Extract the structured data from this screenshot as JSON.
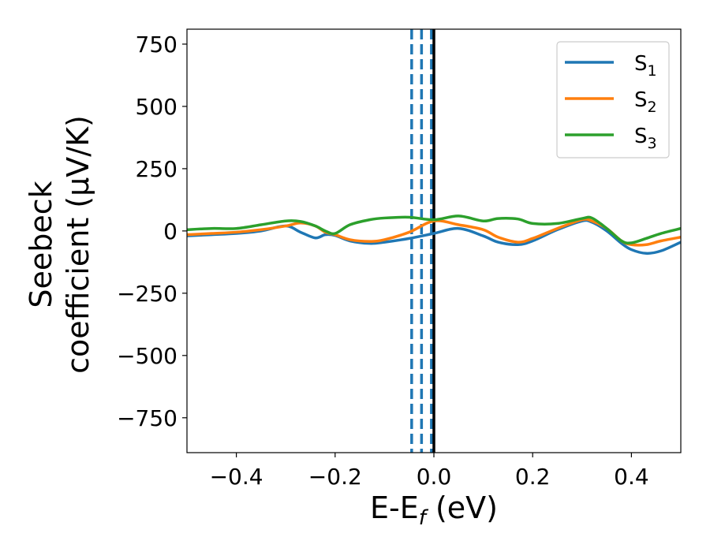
{
  "chart_data": {
    "type": "line",
    "xlabel": "E-E",
    "xlabel_sub": "f",
    "xlabel_unit": " (eV)",
    "ylabel_line1": "Seebeck",
    "ylabel_line2": "coefficient  (μV/K)",
    "xlim": [
      -0.5,
      0.5
    ],
    "ylim": [
      -890,
      810
    ],
    "xticks": [
      -0.4,
      -0.2,
      0.0,
      0.2,
      0.4
    ],
    "xtick_labels": [
      "−0.4",
      "−0.2",
      "0.0",
      "0.2",
      "0.4"
    ],
    "yticks": [
      750,
      500,
      250,
      0,
      -250,
      -500,
      -750
    ],
    "ytick_labels": [
      "750",
      "500",
      "250",
      "0",
      "−250",
      "−500",
      "−750"
    ],
    "grid": false,
    "legend_position": "top-right",
    "vlines": [
      {
        "x": -0.045,
        "style": "dashed",
        "color": "#1f77b4"
      },
      {
        "x": -0.025,
        "style": "dashed",
        "color": "#1f77b4"
      },
      {
        "x": -0.005,
        "style": "dashed",
        "color": "#1f77b4"
      },
      {
        "x": 0.0,
        "style": "solid",
        "color": "#000000"
      }
    ],
    "series": [
      {
        "name": "S",
        "name_sub": "1",
        "color": "#1f77b4",
        "x": [
          -0.5,
          -0.45,
          -0.4,
          -0.35,
          -0.3,
          -0.27,
          -0.24,
          -0.22,
          -0.2,
          -0.17,
          -0.13,
          -0.1,
          -0.05,
          0.0,
          0.05,
          0.1,
          0.13,
          0.17,
          0.2,
          0.25,
          0.3,
          0.32,
          0.35,
          0.38,
          0.4,
          0.43,
          0.46,
          0.5
        ],
        "y": [
          -20,
          -15,
          -10,
          0,
          20,
          -5,
          -28,
          -15,
          -18,
          -40,
          -50,
          -45,
          -30,
          -10,
          10,
          -20,
          -45,
          -55,
          -40,
          5,
          40,
          35,
          0,
          -50,
          -75,
          -90,
          -80,
          -45
        ]
      },
      {
        "name": "S",
        "name_sub": "2",
        "color": "#ff7f0e",
        "x": [
          -0.5,
          -0.45,
          -0.4,
          -0.35,
          -0.3,
          -0.27,
          -0.24,
          -0.22,
          -0.2,
          -0.17,
          -0.13,
          -0.1,
          -0.05,
          0.0,
          0.05,
          0.1,
          0.13,
          0.17,
          0.2,
          0.25,
          0.3,
          0.32,
          0.35,
          0.38,
          0.4,
          0.43,
          0.46,
          0.5
        ],
        "y": [
          -15,
          -10,
          -5,
          5,
          20,
          32,
          20,
          -5,
          -15,
          -35,
          -42,
          -35,
          -5,
          40,
          25,
          5,
          -25,
          -45,
          -30,
          10,
          45,
          40,
          10,
          -40,
          -55,
          -55,
          -40,
          -25
        ]
      },
      {
        "name": "S",
        "name_sub": "3",
        "color": "#2ca02c",
        "x": [
          -0.5,
          -0.45,
          -0.4,
          -0.35,
          -0.3,
          -0.27,
          -0.24,
          -0.22,
          -0.2,
          -0.17,
          -0.13,
          -0.1,
          -0.05,
          0.0,
          0.05,
          0.1,
          0.13,
          0.17,
          0.2,
          0.25,
          0.3,
          0.32,
          0.35,
          0.38,
          0.4,
          0.43,
          0.46,
          0.5
        ],
        "y": [
          5,
          10,
          10,
          25,
          40,
          38,
          20,
          0,
          -10,
          25,
          45,
          52,
          55,
          45,
          60,
          40,
          50,
          48,
          30,
          30,
          50,
          52,
          10,
          -40,
          -48,
          -30,
          -10,
          10
        ]
      }
    ]
  }
}
